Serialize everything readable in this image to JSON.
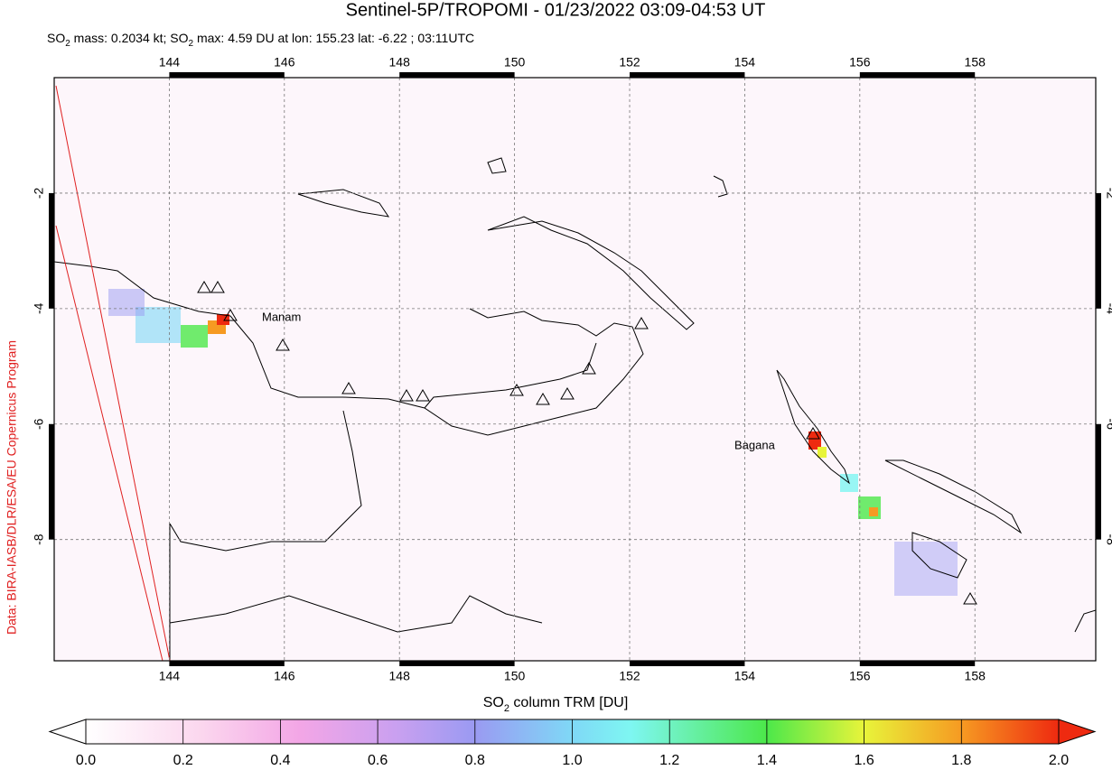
{
  "title": "Sentinel-5P/TROPOMI - 01/23/2022 03:09-04:53 UT",
  "subtitle": [
    "SO",
    "2",
    " mass: 0.2034 kt; SO",
    "2",
    " max: 4.59 DU at lon: 155.23 lat: -6.22 ; 03:11UTC"
  ],
  "credit": "Data: BIRA-IASB/DLR/ESA/EU Copernicus Program",
  "map": {
    "xlim": [
      142,
      160.1
    ],
    "ylim": [
      -10.1,
      0
    ],
    "xticks": [
      144,
      146,
      148,
      150,
      152,
      154,
      156,
      158
    ],
    "yticks": [
      -2,
      -4,
      -6,
      -8
    ],
    "grid": true,
    "annotations": [
      "Manam",
      "Bagana"
    ]
  },
  "colorbar": {
    "label": [
      "SO",
      "2",
      " column TRM [DU]"
    ],
    "lim": [
      0,
      2
    ],
    "ticks": [
      {
        "value": 0,
        "label": "0.0"
      },
      {
        "value": 0.2,
        "label": "0.2"
      },
      {
        "value": 0.4,
        "label": "0.4"
      },
      {
        "value": 0.6,
        "label": "0.6"
      },
      {
        "value": 0.8,
        "label": "0.8"
      },
      {
        "value": 1,
        "label": "1.0"
      },
      {
        "value": 1.2,
        "label": "1.2"
      },
      {
        "value": 1.4,
        "label": "1.4"
      },
      {
        "value": 1.6,
        "label": "1.6"
      },
      {
        "value": 1.8,
        "label": "1.8"
      },
      {
        "value": 2,
        "label": "2.0"
      }
    ]
  }
}
